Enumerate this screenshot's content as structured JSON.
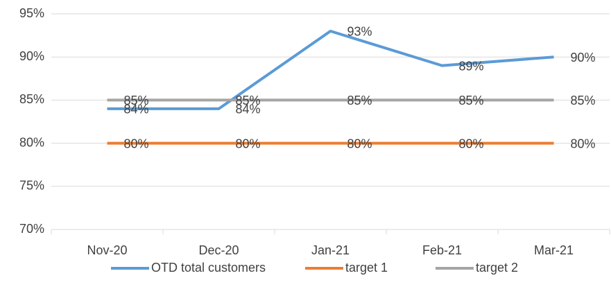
{
  "chart_data": {
    "type": "line",
    "categories": [
      "Nov-20",
      "Dec-20",
      "Jan-21",
      "Feb-21",
      "Mar-21"
    ],
    "series": [
      {
        "name": "OTD total customers",
        "color": "#5b9bd5",
        "values": [
          84,
          84,
          93,
          89,
          90
        ],
        "value_labels": [
          "84%",
          "84%",
          "93%",
          "89%",
          "90%"
        ]
      },
      {
        "name": "target 1",
        "color": "#ed7d31",
        "values": [
          80,
          80,
          80,
          80,
          80
        ],
        "value_labels": [
          "80%",
          "80%",
          "80%",
          "80%",
          "80%"
        ]
      },
      {
        "name": "target 2",
        "color": "#a5a5a5",
        "values": [
          85,
          85,
          85,
          85,
          85
        ],
        "value_labels": [
          "85%",
          "85%",
          "85%",
          "85%",
          "85%"
        ]
      }
    ],
    "ylim": [
      70,
      95
    ],
    "yticks": [
      {
        "value": 70,
        "label": "70%"
      },
      {
        "value": 75,
        "label": "75%"
      },
      {
        "value": 80,
        "label": "80%"
      },
      {
        "value": 85,
        "label": "85%"
      },
      {
        "value": 90,
        "label": "90%"
      },
      {
        "value": 95,
        "label": "95%"
      }
    ],
    "grid": true,
    "legend": "bottom"
  }
}
